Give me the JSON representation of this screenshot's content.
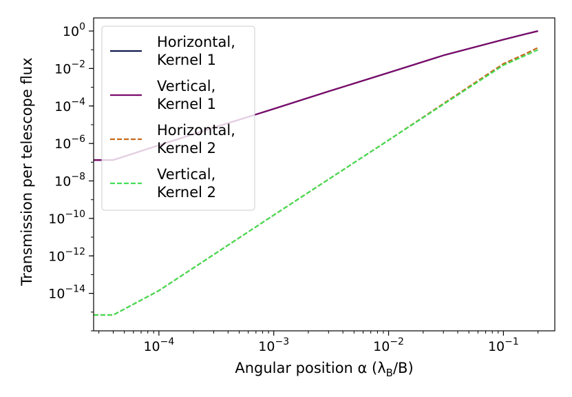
{
  "chart_data": {
    "type": "line",
    "xlabel": "Angular position α (λ_B/B)",
    "ylabel": "Transmission per telescope flux",
    "x_scale": "log",
    "y_scale": "log",
    "xlim": [
      2.7e-05,
      0.28
    ],
    "ylim": [
      1e-16,
      5
    ],
    "x_ticks": [
      {
        "value": 0.0001,
        "base": "10",
        "exp": "−4"
      },
      {
        "value": 0.001,
        "base": "10",
        "exp": "−3"
      },
      {
        "value": 0.01,
        "base": "10",
        "exp": "−2"
      },
      {
        "value": 0.1,
        "base": "10",
        "exp": "−1"
      }
    ],
    "y_ticks": [
      {
        "value": 1,
        "base": "10",
        "exp": "0"
      },
      {
        "value": 0.01,
        "base": "10",
        "exp": "−2"
      },
      {
        "value": 0.0001,
        "base": "10",
        "exp": "−4"
      },
      {
        "value": 1e-06,
        "base": "10",
        "exp": "−6"
      },
      {
        "value": 1e-08,
        "base": "10",
        "exp": "−8"
      },
      {
        "value": 1e-10,
        "base": "10",
        "exp": "−10"
      },
      {
        "value": 1e-12,
        "base": "10",
        "exp": "−12"
      },
      {
        "value": 1e-14,
        "base": "10",
        "exp": "−14"
      }
    ],
    "grid": false,
    "legend_position": "upper-left",
    "series": [
      {
        "name": "Horizontal, Kernel 1",
        "label_lines": [
          "Horizontal,",
          "Kernel 1"
        ],
        "color": "#0d1a4f",
        "dash": "solid",
        "x": [
          2.7e-05,
          4e-05,
          0.0001,
          0.0003,
          0.001,
          0.003,
          0.01,
          0.03,
          0.1,
          0.15,
          0.2
        ],
        "y": [
          1.3e-07,
          1.3e-07,
          8e-07,
          7e-06,
          7e-05,
          0.0006,
          0.006,
          0.05,
          0.35,
          0.65,
          1.0
        ]
      },
      {
        "name": "Vertical, Kernel 1",
        "label_lines": [
          "Vertical,",
          "Kernel 1"
        ],
        "color": "#7b0a6b",
        "dash": "solid",
        "x": [
          2.7e-05,
          4e-05,
          0.0001,
          0.0003,
          0.001,
          0.003,
          0.01,
          0.03,
          0.1,
          0.15,
          0.2
        ],
        "y": [
          1.3e-07,
          1.3e-07,
          8e-07,
          7e-06,
          7e-05,
          0.0006,
          0.006,
          0.05,
          0.35,
          0.65,
          1.0
        ]
      },
      {
        "name": "Horizontal, Kernel 2",
        "label_lines": [
          "Horizontal,",
          "Kernel 2"
        ],
        "color": "#c8681a",
        "dash": "dashed",
        "x": [
          2.7e-05,
          4e-05,
          0.0001,
          0.001,
          0.01,
          0.1,
          0.15,
          0.2
        ],
        "y": [
          7e-16,
          7e-16,
          1.4e-14,
          1.5e-10,
          1.5e-06,
          0.018,
          0.055,
          0.13
        ]
      },
      {
        "name": "Vertical, Kernel 2",
        "label_lines": [
          "Vertical,",
          "Kernel 2"
        ],
        "color": "#44dd55",
        "dash": "dashed",
        "x": [
          2.7e-05,
          4e-05,
          0.0001,
          0.001,
          0.01,
          0.1,
          0.15,
          0.2
        ],
        "y": [
          7e-16,
          7e-16,
          1.4e-14,
          1.5e-10,
          1.5e-06,
          0.015,
          0.045,
          0.1
        ]
      }
    ]
  }
}
